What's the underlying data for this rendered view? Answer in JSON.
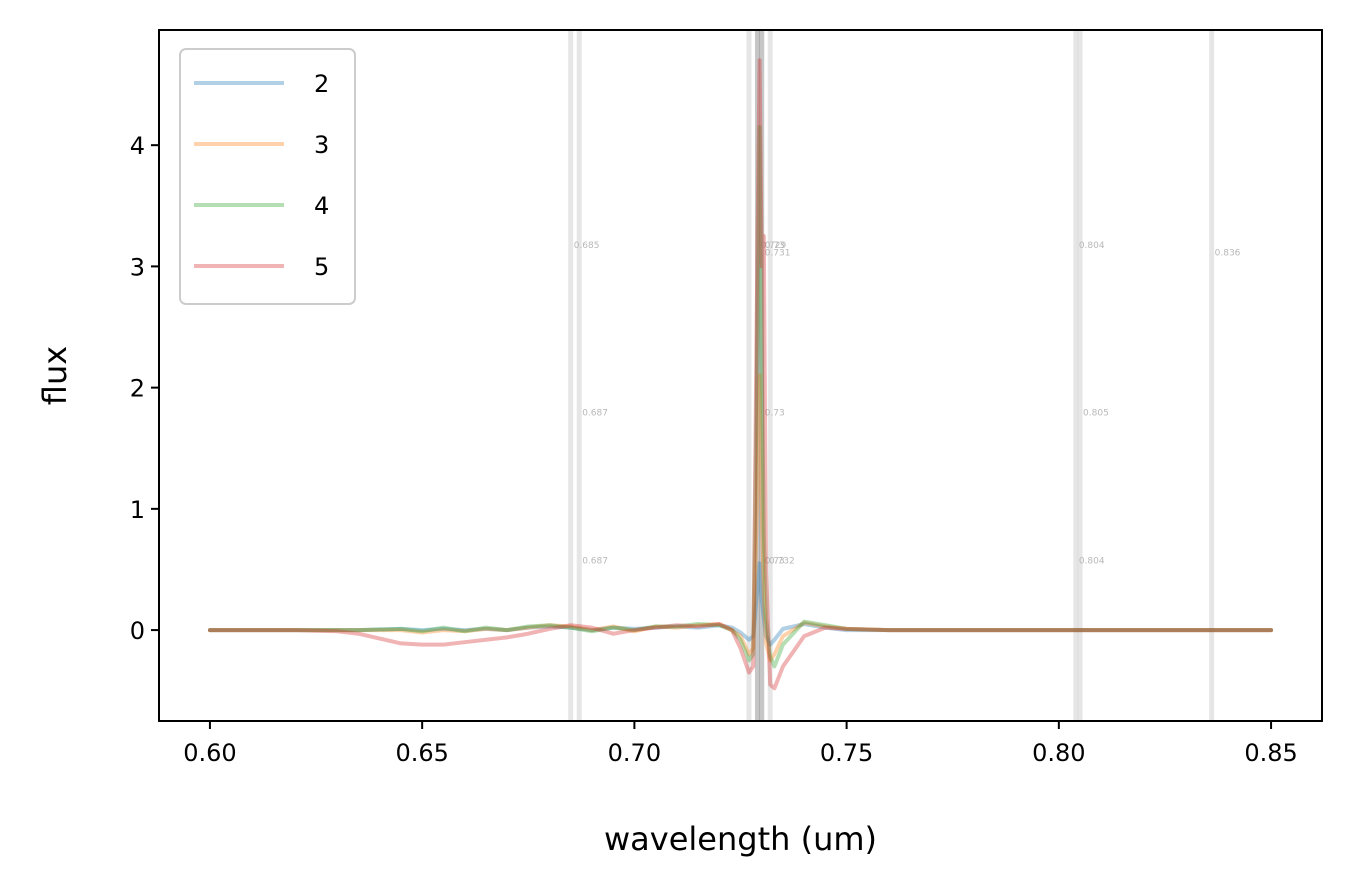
{
  "chart_data": {
    "type": "line",
    "xlabel": "wavelength (um)",
    "ylabel": "flux",
    "xlim": [
      0.588,
      0.862
    ],
    "ylim": [
      -0.75,
      4.95
    ],
    "xticks": [
      0.6,
      0.65,
      0.7,
      0.75,
      0.8,
      0.85
    ],
    "xtick_labels": [
      "0.60",
      "0.65",
      "0.70",
      "0.75",
      "0.80",
      "0.85"
    ],
    "yticks": [
      0,
      1,
      2,
      3,
      4
    ],
    "ytick_labels": [
      "0",
      "1",
      "2",
      "3",
      "4"
    ],
    "grid": false,
    "legend_location": "upper left",
    "series": [
      {
        "name": "2",
        "color": "#1f77b4",
        "x": [
          0.6,
          0.62,
          0.635,
          0.645,
          0.65,
          0.655,
          0.66,
          0.665,
          0.67,
          0.675,
          0.68,
          0.685,
          0.69,
          0.695,
          0.7,
          0.705,
          0.71,
          0.715,
          0.72,
          0.723,
          0.725,
          0.727,
          0.728,
          0.729,
          0.7295,
          0.73,
          0.7305,
          0.731,
          0.732,
          0.733,
          0.735,
          0.74,
          0.745,
          0.75,
          0.76,
          0.78,
          0.8,
          0.85
        ],
        "y": [
          0,
          0,
          0,
          0.01,
          0.0,
          0.01,
          0.0,
          0.01,
          0.0,
          0.02,
          0.03,
          0.02,
          0.0,
          0.02,
          0.01,
          0.02,
          0.03,
          0.02,
          0.04,
          0.02,
          -0.02,
          -0.08,
          -0.05,
          0.35,
          0.55,
          0.25,
          0.1,
          -0.05,
          -0.12,
          -0.08,
          0.01,
          0.05,
          0.02,
          0.0,
          0,
          0,
          0,
          0
        ]
      },
      {
        "name": "3",
        "color": "#ff7f0e",
        "x": [
          0.6,
          0.62,
          0.635,
          0.645,
          0.65,
          0.655,
          0.66,
          0.665,
          0.67,
          0.675,
          0.68,
          0.685,
          0.69,
          0.695,
          0.7,
          0.705,
          0.71,
          0.715,
          0.72,
          0.723,
          0.725,
          0.727,
          0.728,
          0.729,
          0.7295,
          0.73,
          0.7305,
          0.731,
          0.732,
          0.733,
          0.735,
          0.74,
          0.745,
          0.75,
          0.76,
          0.78,
          0.8,
          0.85
        ],
        "y": [
          0,
          0,
          0,
          0.0,
          -0.02,
          0.0,
          -0.01,
          0.01,
          0.0,
          0.02,
          0.04,
          0.03,
          0.0,
          0.03,
          -0.01,
          0.03,
          0.02,
          0.04,
          0.05,
          0.0,
          -0.05,
          -0.2,
          -0.15,
          1.2,
          2.1,
          1.0,
          0.3,
          -0.1,
          -0.25,
          -0.2,
          -0.05,
          0.06,
          0.03,
          0.01,
          0,
          0,
          0,
          0
        ]
      },
      {
        "name": "4",
        "color": "#2ca02c",
        "x": [
          0.6,
          0.62,
          0.635,
          0.645,
          0.65,
          0.655,
          0.66,
          0.665,
          0.67,
          0.675,
          0.68,
          0.685,
          0.69,
          0.695,
          0.7,
          0.705,
          0.71,
          0.715,
          0.72,
          0.723,
          0.725,
          0.727,
          0.728,
          0.729,
          0.7295,
          0.73,
          0.7305,
          0.731,
          0.732,
          0.733,
          0.735,
          0.74,
          0.745,
          0.75,
          0.76,
          0.78,
          0.8,
          0.85
        ],
        "y": [
          0,
          0,
          0,
          0.01,
          -0.01,
          0.02,
          -0.01,
          0.02,
          0.0,
          0.03,
          0.04,
          0.02,
          -0.01,
          0.02,
          0.0,
          0.03,
          0.03,
          0.05,
          0.04,
          0.0,
          -0.08,
          -0.25,
          -0.2,
          2.5,
          4.15,
          2.2,
          0.8,
          0.1,
          -0.22,
          -0.3,
          -0.12,
          0.07,
          0.04,
          0.01,
          0,
          0,
          0,
          0
        ]
      },
      {
        "name": "5",
        "color": "#d62728",
        "x": [
          0.6,
          0.62,
          0.63,
          0.635,
          0.64,
          0.645,
          0.65,
          0.655,
          0.66,
          0.665,
          0.67,
          0.675,
          0.68,
          0.685,
          0.69,
          0.695,
          0.7,
          0.705,
          0.71,
          0.715,
          0.72,
          0.723,
          0.725,
          0.727,
          0.728,
          0.729,
          0.7295,
          0.73,
          0.7305,
          0.731,
          0.732,
          0.733,
          0.735,
          0.74,
          0.745,
          0.75,
          0.76,
          0.78,
          0.8,
          0.85
        ],
        "y": [
          0,
          0,
          -0.01,
          -0.03,
          -0.07,
          -0.11,
          -0.12,
          -0.12,
          -0.1,
          -0.08,
          -0.06,
          -0.03,
          0.01,
          0.04,
          0.02,
          -0.03,
          0.0,
          0.02,
          0.04,
          0.03,
          0.05,
          0.0,
          -0.15,
          -0.35,
          -0.3,
          3.2,
          4.7,
          3.0,
          3.25,
          0.5,
          -0.45,
          -0.48,
          -0.3,
          -0.05,
          0.02,
          0.01,
          0,
          0,
          0,
          0
        ]
      }
    ],
    "vertical_lines": [
      {
        "x": 0.685,
        "color": "#c8c8c8"
      },
      {
        "x": 0.687,
        "color": "#c8c8c8"
      },
      {
        "x": 0.727,
        "color": "#c8c8c8"
      },
      {
        "x": 0.729,
        "color": "#808080"
      },
      {
        "x": 0.73,
        "color": "#808080"
      },
      {
        "x": 0.732,
        "color": "#c8c8c8"
      },
      {
        "x": 0.804,
        "color": "#c8c8c8"
      },
      {
        "x": 0.805,
        "color": "#c8c8c8"
      },
      {
        "x": 0.836,
        "color": "#c8c8c8"
      }
    ],
    "line_labels": [
      {
        "x": 0.685,
        "y": 3.15,
        "text": "0.685"
      },
      {
        "x": 0.729,
        "y": 3.15,
        "text": "0.729"
      },
      {
        "x": 0.73,
        "y": 3.15,
        "text": "0.73"
      },
      {
        "x": 0.73,
        "y": 3.09,
        "text": "0.731"
      },
      {
        "x": 0.804,
        "y": 3.15,
        "text": "0.804"
      },
      {
        "x": 0.836,
        "y": 3.09,
        "text": "0.836"
      },
      {
        "x": 0.687,
        "y": 1.77,
        "text": "0.687"
      },
      {
        "x": 0.73,
        "y": 1.77,
        "text": "0.73"
      },
      {
        "x": 0.805,
        "y": 1.77,
        "text": "0.805"
      },
      {
        "x": 0.687,
        "y": 0.55,
        "text": "0.687"
      },
      {
        "x": 0.73,
        "y": 0.55,
        "text": "0.73"
      },
      {
        "x": 0.731,
        "y": 0.55,
        "text": "0.732"
      },
      {
        "x": 0.804,
        "y": 0.55,
        "text": "0.804"
      }
    ]
  }
}
